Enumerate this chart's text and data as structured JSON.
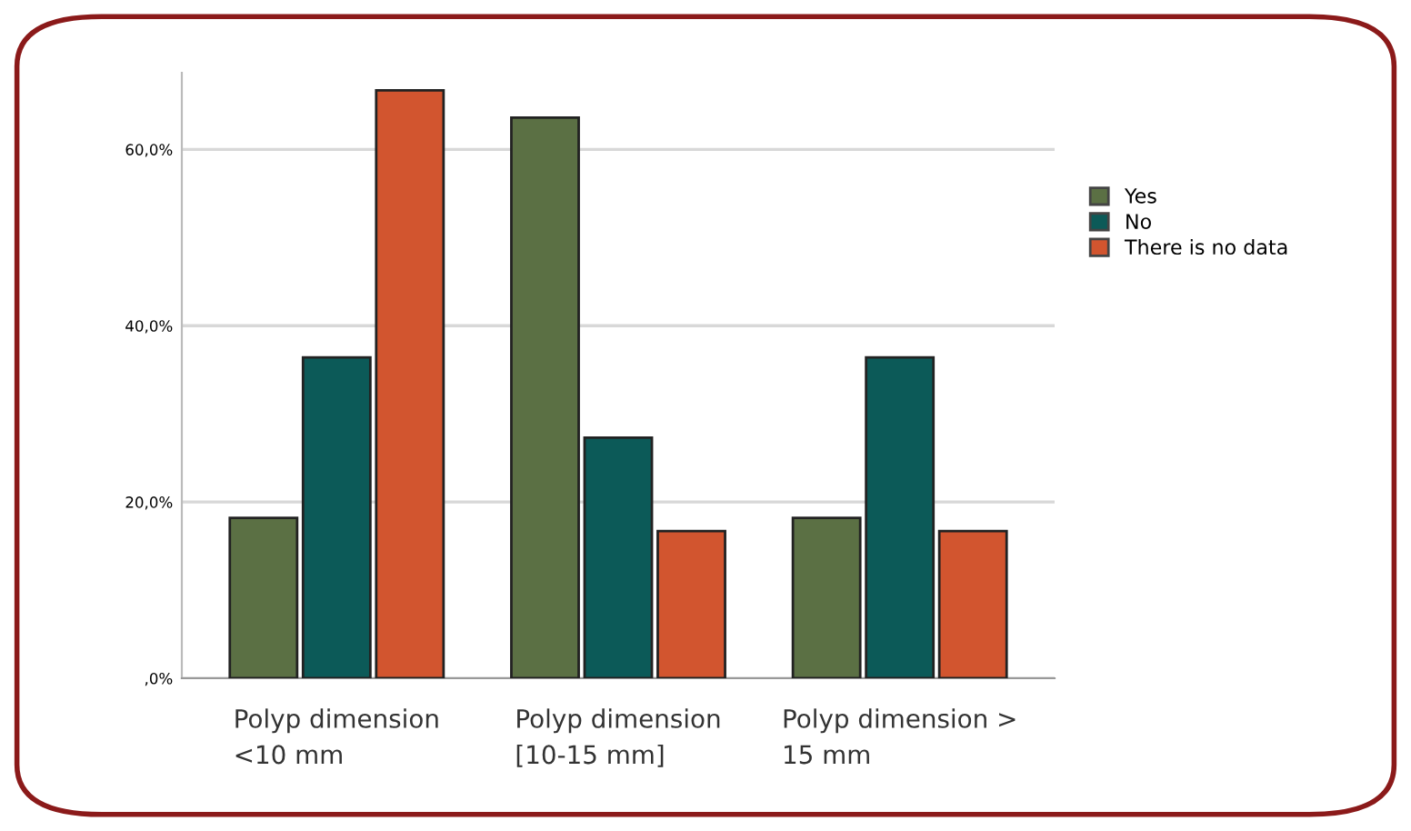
{
  "chart_data": {
    "type": "bar",
    "categories": [
      "Polyp dimension\n<10 mm",
      "Polyp dimension\n[10-15 mm]",
      "Polyp dimension >\n15 mm"
    ],
    "series": [
      {
        "name": "Yes",
        "color": "#5b7044",
        "values": [
          18.2,
          63.6,
          18.2
        ]
      },
      {
        "name": "No",
        "color": "#0c5a58",
        "values": [
          36.4,
          27.3,
          36.4
        ]
      },
      {
        "name": "There is no data",
        "color": "#d2552f",
        "values": [
          66.7,
          16.7,
          16.7
        ]
      }
    ],
    "ylim": [
      0,
      68.7
    ],
    "yticks": [
      {
        "value": 0,
        "label": ",0%"
      },
      {
        "value": 20,
        "label": "20,0%"
      },
      {
        "value": 40,
        "label": "40,0%"
      },
      {
        "value": 60,
        "label": "60,0%"
      }
    ],
    "grid": "y",
    "legend": "top right"
  }
}
